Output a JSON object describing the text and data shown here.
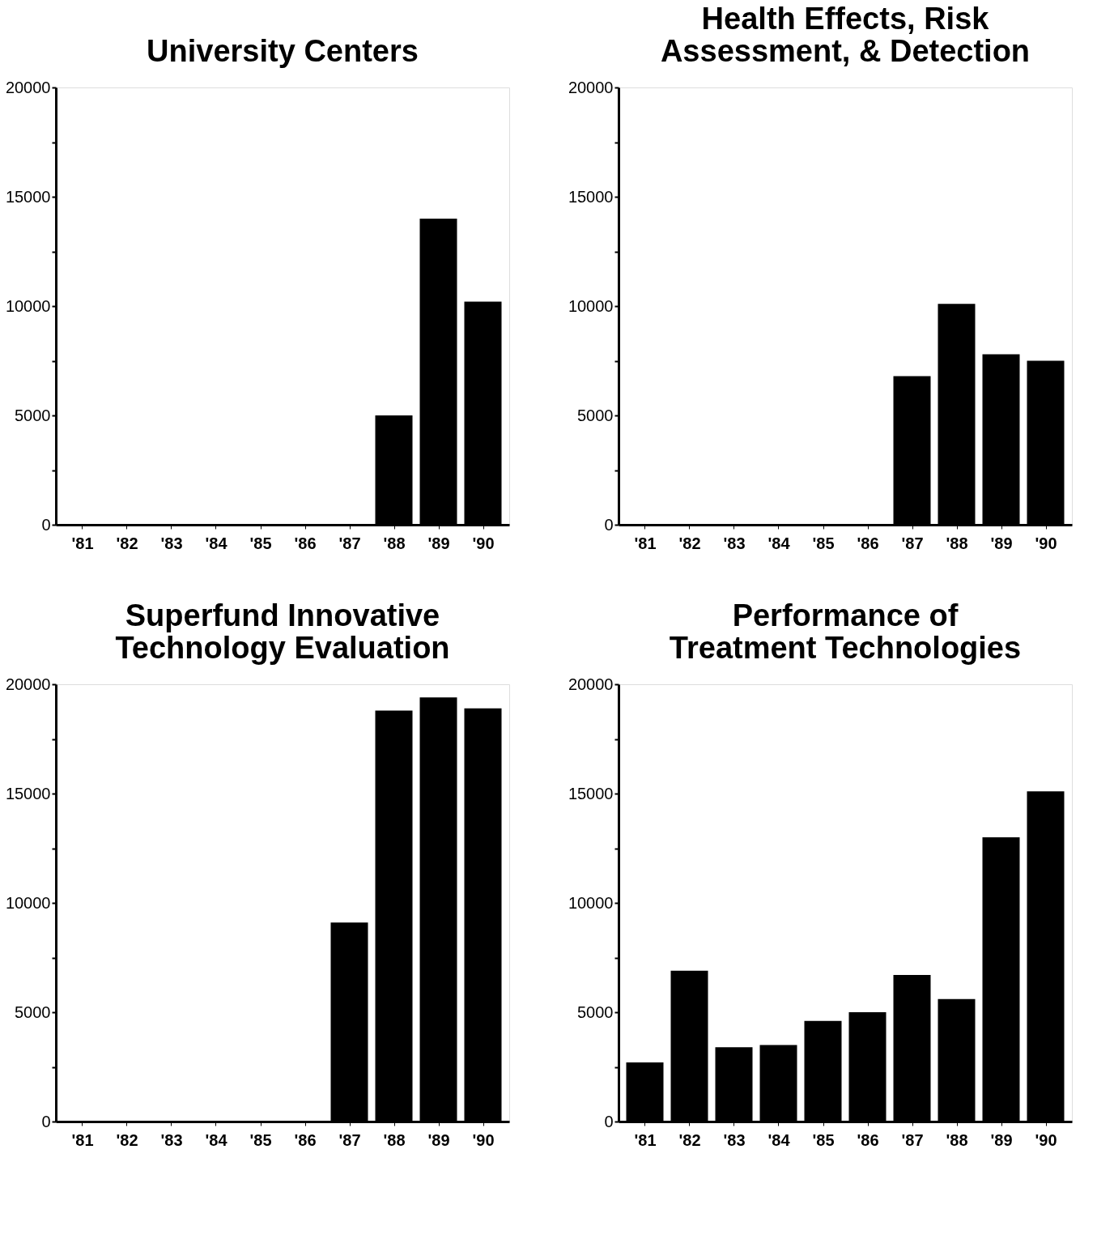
{
  "chart_data": [
    {
      "type": "bar",
      "title": "University Centers",
      "categories": [
        "'81",
        "'82",
        "'83",
        "'84",
        "'85",
        "'86",
        "'87",
        "'88",
        "'89",
        "'90"
      ],
      "values": [
        0,
        0,
        0,
        0,
        0,
        0,
        0,
        5000,
        14000,
        10200
      ],
      "color": "#000000",
      "ylim": [
        0,
        20000
      ],
      "yticks": [
        0,
        {
          "value": 2500,
          "label": null
        },
        5000,
        {
          "value": 7500,
          "label": null
        },
        10000,
        {
          "value": 12500,
          "label": null
        },
        15000,
        {
          "value": 17500,
          "label": null
        },
        20000
      ]
    },
    {
      "type": "bar",
      "title": "Health Effects, Risk\nAssessment, & Detection",
      "categories": [
        "'81",
        "'82",
        "'83",
        "'84",
        "'85",
        "'86",
        "'87",
        "'88",
        "'89",
        "'90"
      ],
      "values": [
        0,
        0,
        0,
        0,
        0,
        0,
        6800,
        10100,
        7800,
        7500
      ],
      "color": "#000000",
      "ylim": [
        0,
        20000
      ],
      "yticks": [
        0,
        {
          "value": 2500,
          "label": null
        },
        5000,
        {
          "value": 7500,
          "label": null
        },
        10000,
        {
          "value": 12500,
          "label": null
        },
        15000,
        {
          "value": 17500,
          "label": null
        },
        20000
      ]
    },
    {
      "type": "bar",
      "title": "Superfund Innovative\nTechnology Evaluation",
      "categories": [
        "'81",
        "'82",
        "'83",
        "'84",
        "'85",
        "'86",
        "'87",
        "'88",
        "'89",
        "'90"
      ],
      "values": [
        0,
        0,
        0,
        0,
        0,
        0,
        9100,
        18800,
        19400,
        18900
      ],
      "color": "#000000",
      "ylim": [
        0,
        20000
      ],
      "yticks": [
        0,
        {
          "value": 2500,
          "label": null
        },
        5000,
        {
          "value": 7500,
          "label": null
        },
        10000,
        {
          "value": 12500,
          "label": null
        },
        15000,
        {
          "value": 17500,
          "label": null
        },
        20000
      ]
    },
    {
      "type": "bar",
      "title": "Performance of\nTreatment Technologies",
      "categories": [
        "'81",
        "'82",
        "'83",
        "'84",
        "'85",
        "'86",
        "'87",
        "'88",
        "'89",
        "'90"
      ],
      "values": [
        2700,
        6900,
        3400,
        3500,
        4600,
        5000,
        6700,
        5600,
        13000,
        15100
      ],
      "color": "#000000",
      "ylim": [
        0,
        20000
      ],
      "yticks": [
        0,
        {
          "value": 2500,
          "label": null
        },
        5000,
        {
          "value": 7500,
          "label": null
        },
        10000,
        {
          "value": 12500,
          "label": null
        },
        15000,
        {
          "value": 17500,
          "label": null
        },
        20000
      ]
    }
  ]
}
